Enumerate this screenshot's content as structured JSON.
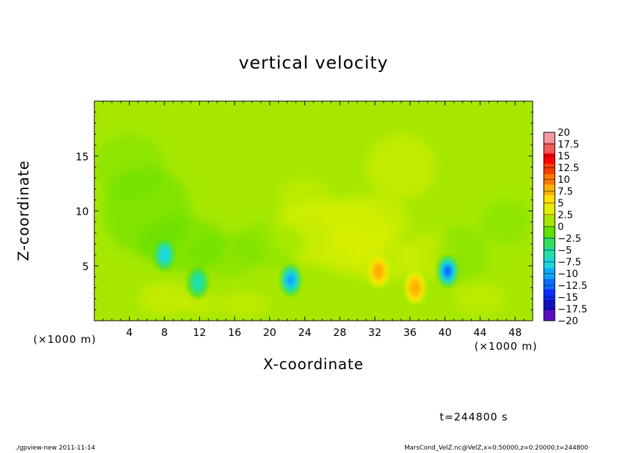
{
  "chart_data": {
    "type": "heatmap",
    "title": "vertical velocity",
    "xlabel": "X-coordinate",
    "ylabel": "Z-coordinate",
    "x_unit": "(×1000 m)",
    "x_range": [
      0,
      50
    ],
    "y_range": [
      0,
      20
    ],
    "x_ticks": [
      4,
      8,
      12,
      16,
      20,
      24,
      28,
      32,
      36,
      40,
      44,
      48
    ],
    "y_ticks": [
      5,
      10,
      15
    ],
    "colorbar": {
      "labels": [
        "20",
        "17.5",
        "15",
        "12.5",
        "10",
        "7.5",
        "5",
        "2.5",
        "0",
        "−2.5",
        "−5",
        "−7.5",
        "−10",
        "−12.5",
        "−15",
        "−17.5",
        "−20"
      ],
      "colors": [
        "#f59aa0",
        "#f25a5a",
        "#ff0000",
        "#ff3c00",
        "#ff7a00",
        "#ffb000",
        "#ffe000",
        "#e0f000",
        "#a6e800",
        "#5ee000",
        "#2ee05a",
        "#22e0a8",
        "#1ad8e0",
        "#10a8ff",
        "#0a6cff",
        "#0a2cff",
        "#1010c0",
        "#5a10c0"
      ]
    },
    "features": [
      {
        "x": 8,
        "z": 6,
        "value": -9
      },
      {
        "x": 11.8,
        "z": 3.5,
        "value": -7
      },
      {
        "x": 22.4,
        "z": 3.7,
        "value": -12
      },
      {
        "x": 32.4,
        "z": 4.5,
        "value": 7.5
      },
      {
        "x": 36.6,
        "z": 3.0,
        "value": 7.5
      },
      {
        "x": 40.3,
        "z": 4.5,
        "value": -14
      }
    ],
    "background_value": 0.5
  },
  "annotations": {
    "x_unit_left": "(×1000 m)",
    "x_unit_right": "(×1000 m)",
    "time": "t=244800 s",
    "footer_left": "./gpview-new   2011-11-14",
    "footer_right": "MarsCond_VelZ.nc@VelZ,x=0:50000,z=0:20000,t=244800"
  }
}
